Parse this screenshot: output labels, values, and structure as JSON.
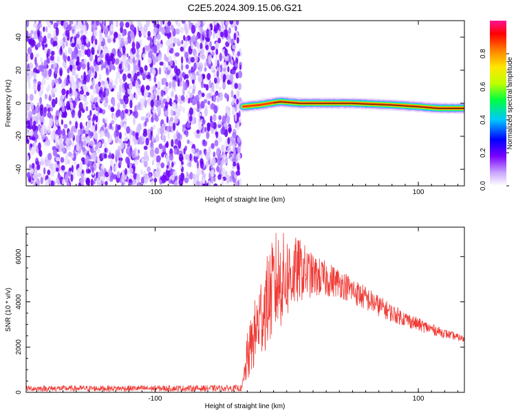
{
  "title": "C2E5.2024.309.15.06.G21",
  "chart_data": [
    {
      "type": "heatmap",
      "xlabel": "Height of straight line (km)",
      "ylabel": "Frequency (Hz)",
      "xlim": [
        -198,
        135
      ],
      "ylim": [
        -50,
        50
      ],
      "xticks": [
        -100,
        100
      ],
      "yticks": [
        -40,
        -20,
        0,
        20,
        40
      ],
      "colorbar": {
        "label": "Normalized spectral amplitude",
        "range": [
          0,
          1
        ],
        "ticks": [
          "0.0",
          "0.2",
          "0.4",
          "0.6",
          "0.8"
        ]
      },
      "noise_region_x": [
        -198,
        -35
      ],
      "signal_trace": [
        {
          "x": -33,
          "y": -2
        },
        {
          "x": -20,
          "y": -1
        },
        {
          "x": -5,
          "y": 1
        },
        {
          "x": 10,
          "y": 0
        },
        {
          "x": 50,
          "y": 0
        },
        {
          "x": 80,
          "y": -1
        },
        {
          "x": 100,
          "y": -2
        },
        {
          "x": 115,
          "y": -3
        },
        {
          "x": 135,
          "y": -3
        }
      ]
    },
    {
      "type": "line",
      "xlabel": "Height of straight line (km)",
      "ylabel": "SNR (10 * v/v)",
      "xlim": [
        -198,
        135
      ],
      "ylim": [
        0,
        7300
      ],
      "xticks": [
        -100,
        100
      ],
      "yticks": [
        0,
        2000,
        4000,
        6000
      ],
      "color": "#ef3b36",
      "envelope": [
        {
          "x": -198,
          "lo": 40,
          "hi": 300
        },
        {
          "x": -34,
          "lo": 40,
          "hi": 320
        },
        {
          "x": -30,
          "lo": 400,
          "hi": 2600
        },
        {
          "x": -20,
          "lo": 1500,
          "hi": 5200
        },
        {
          "x": -8,
          "lo": 2500,
          "hi": 7200
        },
        {
          "x": 10,
          "lo": 4000,
          "hi": 6800
        },
        {
          "x": 20,
          "lo": 4200,
          "hi": 6100
        },
        {
          "x": 40,
          "lo": 4200,
          "hi": 5500
        },
        {
          "x": 60,
          "lo": 3600,
          "hi": 4700
        },
        {
          "x": 80,
          "lo": 3100,
          "hi": 3900
        },
        {
          "x": 100,
          "lo": 2700,
          "hi": 3300
        },
        {
          "x": 120,
          "lo": 2400,
          "hi": 2800
        },
        {
          "x": 135,
          "lo": 2200,
          "hi": 2500
        }
      ]
    }
  ]
}
